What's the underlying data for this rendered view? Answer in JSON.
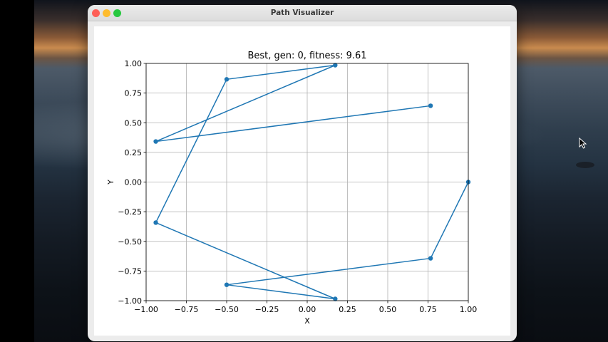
{
  "window": {
    "title": "Path Visualizer"
  },
  "colors": {
    "line": "#1f77b4",
    "grid": "#b0b0b0",
    "axis": "#000000"
  },
  "chart_data": {
    "type": "line",
    "title": "Best, gen: 0, fitness: 9.61",
    "xlabel": "X",
    "ylabel": "Y",
    "xlim": [
      -1.0,
      1.0
    ],
    "ylim": [
      -1.0,
      1.0
    ],
    "grid": true,
    "xticks": [
      "−1.00",
      "−0.75",
      "−0.50",
      "−0.25",
      "0.00",
      "0.25",
      "0.50",
      "0.75",
      "1.00"
    ],
    "yticks": [
      "1.00",
      "0.75",
      "0.50",
      "0.25",
      "0.00",
      "−0.25",
      "−0.50",
      "−0.75",
      "−1.00"
    ],
    "xtick_values": [
      -1.0,
      -0.75,
      -0.5,
      -0.25,
      0.0,
      0.25,
      0.5,
      0.75,
      1.0
    ],
    "ytick_values": [
      1.0,
      0.75,
      0.5,
      0.25,
      0.0,
      -0.25,
      -0.5,
      -0.75,
      -1.0
    ],
    "series": [
      {
        "x": [
          0.766,
          -0.94,
          0.174,
          -0.5,
          -0.94,
          0.174,
          -0.5,
          0.766,
          1.0
        ],
        "y": [
          0.643,
          0.342,
          0.985,
          0.866,
          -0.342,
          -0.985,
          -0.866,
          -0.643,
          0.0
        ]
      }
    ]
  }
}
